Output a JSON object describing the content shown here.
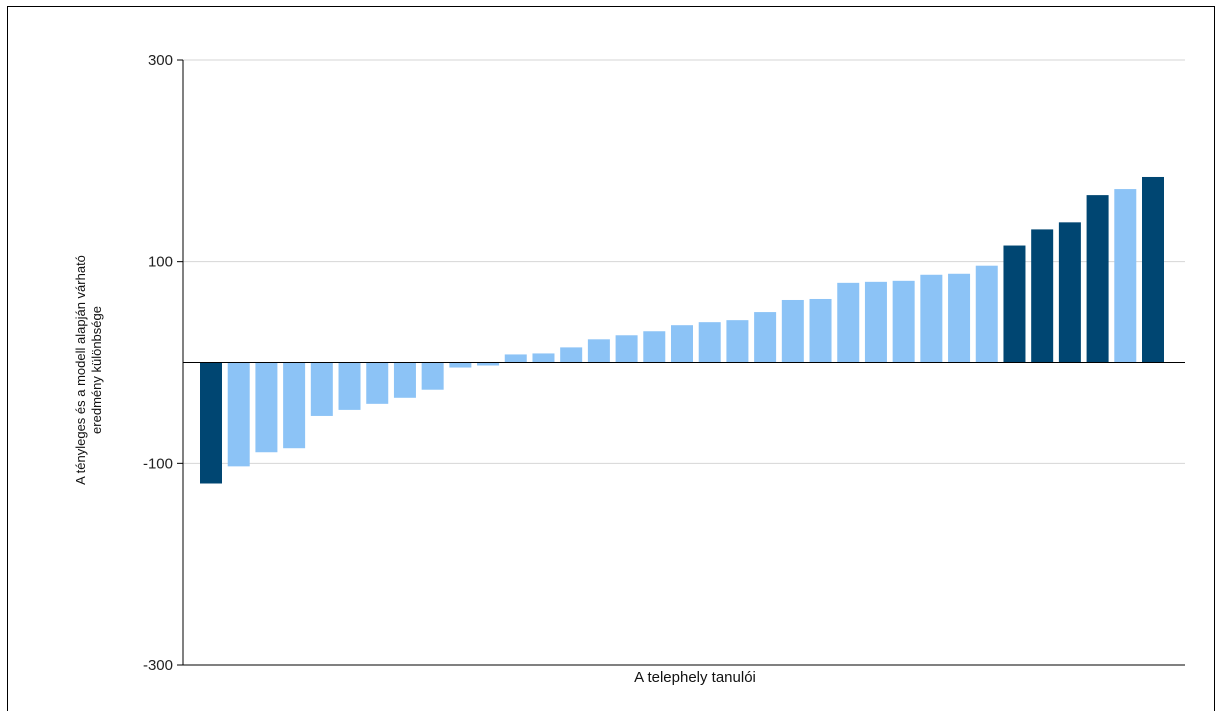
{
  "chart_data": {
    "type": "bar",
    "xlabel": "A telephely tanulói",
    "ylabel_lines": [
      "A tényleges és a modell alapján várható",
      "eredmény különbsége"
    ],
    "ylim": [
      -300,
      300
    ],
    "y_ticks": [
      300,
      100,
      -100,
      -300
    ],
    "gridlines": [
      300,
      100,
      -100
    ],
    "grid": true,
    "legend": "none",
    "colors": {
      "highlight": "#004672",
      "normal": "#8cc3f6",
      "grid": "#d6d6d6",
      "zero_line": "#000000"
    },
    "values": [
      -120,
      -103,
      -89,
      -85,
      -53,
      -47,
      -41,
      -35,
      -27,
      -5,
      -3,
      8,
      9,
      15,
      23,
      27,
      31,
      37,
      40,
      42,
      50,
      62,
      63,
      79,
      80,
      81,
      87,
      88,
      96,
      116,
      132,
      139,
      166,
      172,
      184
    ],
    "highlighted": [
      true,
      false,
      false,
      false,
      false,
      false,
      false,
      false,
      false,
      false,
      false,
      false,
      false,
      false,
      false,
      false,
      false,
      false,
      false,
      false,
      false,
      false,
      false,
      false,
      false,
      false,
      false,
      false,
      false,
      true,
      true,
      true,
      true,
      false,
      true
    ]
  }
}
